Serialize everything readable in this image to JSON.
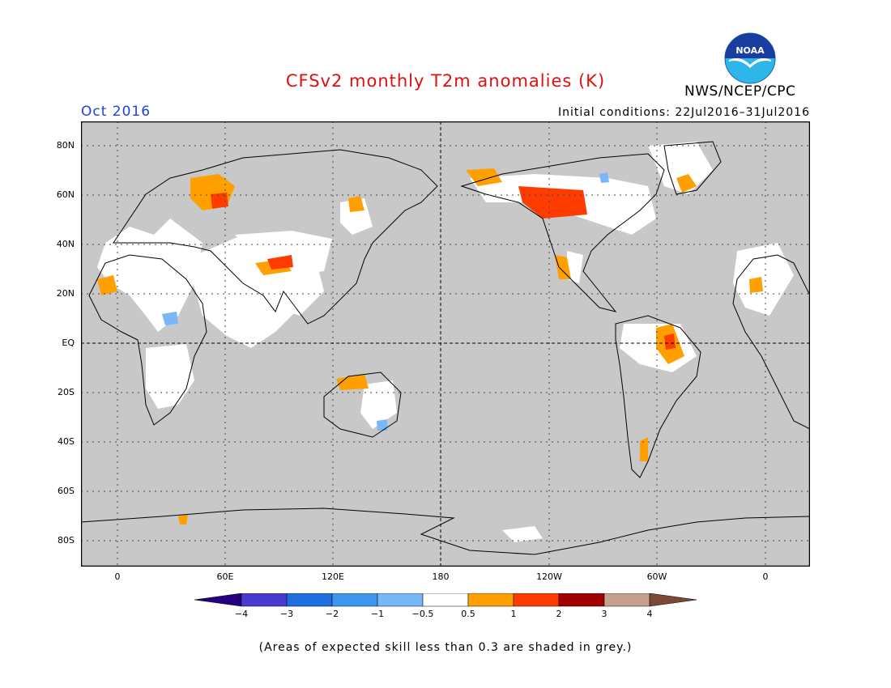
{
  "header": {
    "title": "CFSv2 monthly T2m anomalies (K)",
    "valid_month": "Oct 2016",
    "initial_conditions": "Initial conditions: 22Jul2016–31Jul2016",
    "agency": "NWS/NCEP/CPC",
    "logo_text": "NOAA"
  },
  "map": {
    "lat_labels": [
      "80N",
      "60N",
      "40N",
      "20N",
      "EQ",
      "20S",
      "40S",
      "60S",
      "80S"
    ],
    "lon_labels": [
      "0",
      "60E",
      "120E",
      "180",
      "120W",
      "60W",
      "0"
    ],
    "background_color": "#c8c8c8"
  },
  "colorbar": {
    "labels": [
      "−4",
      "−3",
      "−2",
      "−1",
      "−0.5",
      "0.5",
      "1",
      "2",
      "3",
      "4"
    ],
    "colors": [
      "#240080",
      "#4a3ad0",
      "#1e6ee0",
      "#3c96f0",
      "#78b8f8",
      "#ffffff",
      "#ffa000",
      "#ff3c00",
      "#a00000",
      "#c8a090",
      "#7a4a36"
    ]
  },
  "footnote": "(Areas of expected skill less than 0.3 are shaded in grey.)"
}
